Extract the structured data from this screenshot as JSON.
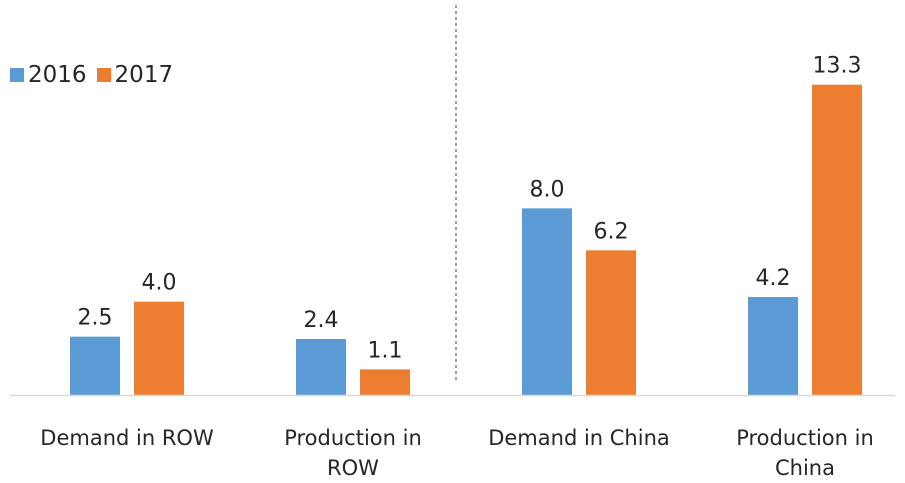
{
  "chart_data": {
    "type": "bar",
    "categories": [
      "Demand in ROW",
      "Production in ROW",
      "Demand in China",
      "Production in China"
    ],
    "category_label_lines": [
      [
        "Demand in ROW"
      ],
      [
        "Production in",
        "ROW"
      ],
      [
        "Demand in China"
      ],
      [
        "Production in",
        "China"
      ]
    ],
    "series": [
      {
        "name": "2016",
        "values": [
          2.5,
          2.4,
          8.0,
          4.2
        ],
        "labels": [
          "2.5",
          "2.4",
          "8.0",
          "4.2"
        ],
        "color": "#5B9BD5"
      },
      {
        "name": "2017",
        "values": [
          4.0,
          1.1,
          6.2,
          13.3
        ],
        "labels": [
          "4.0",
          "1.1",
          "6.2",
          "13.3"
        ],
        "color": "#ED7D31"
      }
    ],
    "ylim": [
      0,
      15
    ],
    "grid": false,
    "legend": "top-left",
    "divider_after_category": 1,
    "axis_color": "#D9D9D9",
    "text_color": "#262626",
    "divider_color": "#404040"
  }
}
